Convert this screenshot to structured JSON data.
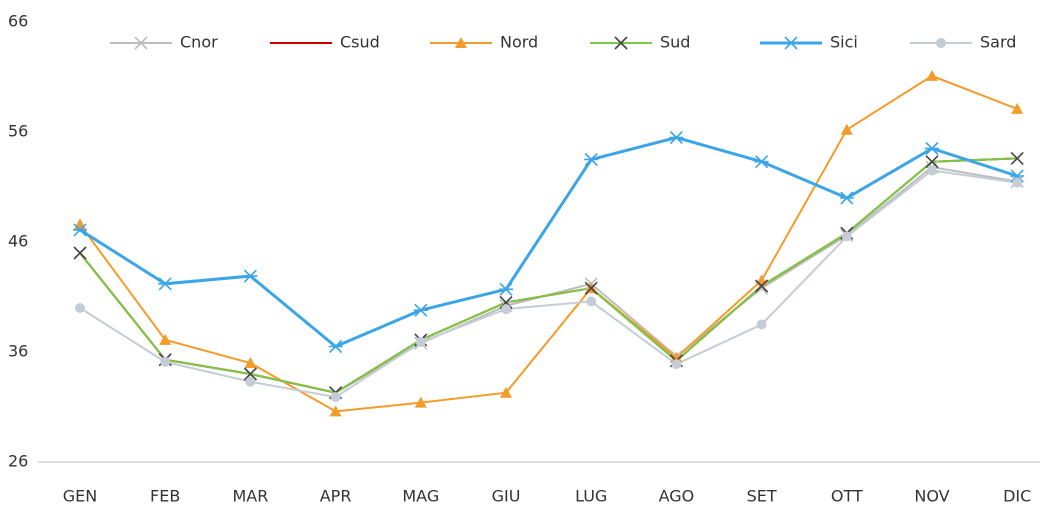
{
  "chart_data": {
    "type": "line",
    "categories": [
      "GEN",
      "FEB",
      "MAR",
      "APR",
      "MAG",
      "GIU",
      "LUG",
      "AGO",
      "SET",
      "OTT",
      "NOV",
      "DIC"
    ],
    "ylim": [
      26,
      66
    ],
    "yticks": [
      26,
      36,
      46,
      56,
      66
    ],
    "grid": false,
    "legend": "top",
    "series": [
      {
        "name": "Cnor",
        "color": "#bdbdbd",
        "marker": "x",
        "marker_color": "#bdbdbd",
        "values": [
          45,
          35.3,
          34,
          32.3,
          36.8,
          40.2,
          42.2,
          35.6,
          41.8,
          46.6,
          52.8,
          51.5
        ]
      },
      {
        "name": "Csud",
        "color": "#cc0000",
        "marker": "none",
        "marker_color": "#cc0000",
        "values": [
          45,
          35.3,
          34,
          32.3,
          37.1,
          40.5,
          41.8,
          35.2,
          42,
          46.8,
          53.3,
          53.6
        ]
      },
      {
        "name": "Nord",
        "color": "#f39c2b",
        "marker": "triangle",
        "marker_color": "#f39c2b",
        "values": [
          47.6,
          37.1,
          35,
          30.6,
          31.4,
          32.3,
          41.8,
          35.5,
          42.5,
          56.2,
          61.1,
          58.1
        ]
      },
      {
        "name": "Sud",
        "color": "#7ac943",
        "marker": "x",
        "marker_color": "#444444",
        "values": [
          45,
          35.3,
          34,
          32.3,
          37.1,
          40.5,
          41.8,
          35.2,
          42,
          46.8,
          53.3,
          53.6
        ]
      },
      {
        "name": "Sici",
        "color": "#3ba5ea",
        "marker": "asterisk",
        "marker_color": "#3ba5ea",
        "values": [
          47.1,
          42.2,
          42.9,
          36.5,
          39.8,
          41.7,
          53.5,
          55.5,
          53.3,
          50,
          54.5,
          52
        ]
      },
      {
        "name": "Sard",
        "color": "#c4cdd6",
        "marker": "circle",
        "marker_color": "#c4cdd6",
        "values": [
          40,
          35.1,
          33.3,
          31.9,
          36.9,
          39.9,
          40.6,
          34.9,
          38.5,
          46.5,
          52.5,
          51.4
        ]
      }
    ]
  }
}
